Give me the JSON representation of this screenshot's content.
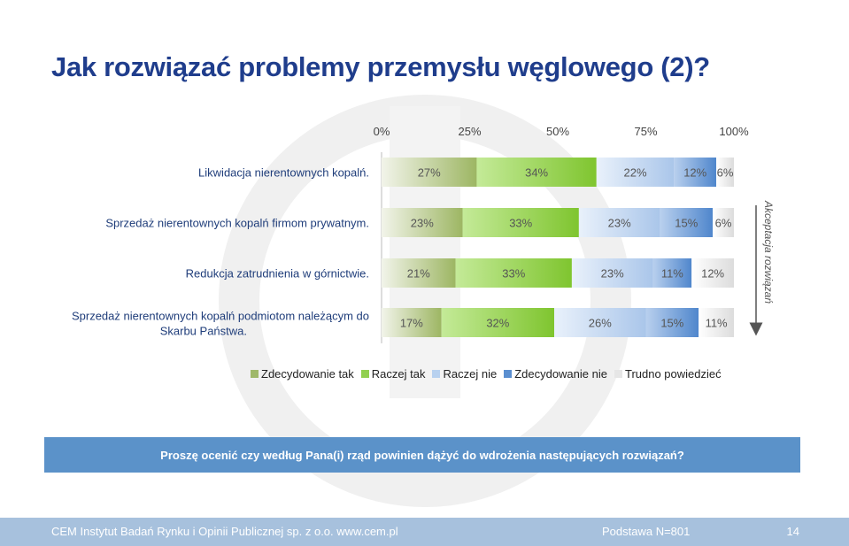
{
  "page": {
    "title": "Jak rozwiązać problemy przemysłu węglowego (2)?",
    "question": "Proszę ocenić czy według Pana(i) rząd powinien dążyć do wdrożenia następujących rozwiązań?"
  },
  "footer": {
    "company": "CEM Instytut Badań Rynku i Opinii Publicznej sp. z o.o. www.cem.pl",
    "base": "Podstawa N=801",
    "page_number": "14"
  },
  "colors": {
    "title": "#1f3d8c",
    "question_bar": "#5b92c9",
    "footer": "#a7c1dd",
    "series": [
      "#9fb86a",
      "#92d050",
      "#b8d1ef",
      "#5b8fd0",
      "#e6e6e6"
    ]
  },
  "chart_data": {
    "type": "bar",
    "orientation": "horizontal",
    "stacked": true,
    "xlim": [
      0,
      100
    ],
    "x_ticks": [
      "0%",
      "25%",
      "50%",
      "75%",
      "100%"
    ],
    "categories": [
      "Likwidacja nierentownych kopalń.",
      "Sprzedaż nierentownych kopalń firmom prywatnym.",
      "Redukcja zatrudnienia w górnictwie.",
      "Sprzedaż nierentownych kopalń podmiotom należącym do Skarbu Państwa."
    ],
    "series": [
      {
        "name": "Zdecydowanie tak",
        "values": [
          27,
          23,
          21,
          17
        ]
      },
      {
        "name": "Raczej tak",
        "values": [
          34,
          33,
          33,
          32
        ]
      },
      {
        "name": "Raczej nie",
        "values": [
          22,
          23,
          23,
          26
        ]
      },
      {
        "name": "Zdecydowanie nie",
        "values": [
          12,
          15,
          11,
          15
        ]
      },
      {
        "name": "Trudno powiedzieć",
        "values": [
          6,
          6,
          12,
          11
        ]
      }
    ],
    "data_label_suffix": "%",
    "side_annotation": "Akceptacja rozwiązań",
    "legend_position": "bottom"
  }
}
